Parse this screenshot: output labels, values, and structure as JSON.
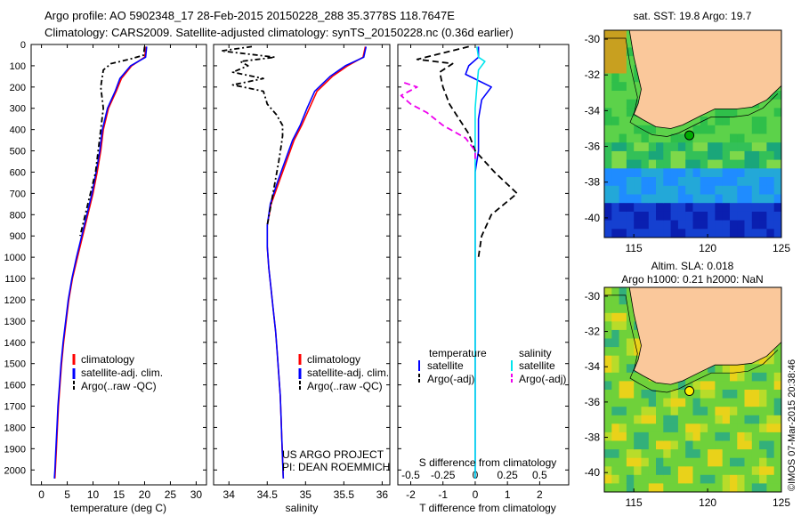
{
  "header": {
    "line1": "Argo profile: AO 5902348_17 28-Feb-2015 20150228_288 35.3778S 118.7647E",
    "line2": "Climatology: CARS2009. Satellite-adjusted climatology: synTS_20150228.nc (0.36d earlier)"
  },
  "colors": {
    "climatology": "#ff0000",
    "satellite": "#0000ff",
    "argo": "#000000",
    "sal_satellite": "#00e5ee",
    "sal_argo": "#ee00ee",
    "land": "#fac89b"
  },
  "chart_data": [
    {
      "type": "line",
      "id": "temperature",
      "xlabel": "temperature (deg C)",
      "ylabel": "",
      "xlim": [
        -2,
        32
      ],
      "ylim": [
        2070,
        0
      ],
      "xticks": [
        0,
        5,
        10,
        15,
        20,
        25,
        30
      ],
      "yticks": [
        0,
        100,
        200,
        300,
        400,
        500,
        600,
        700,
        800,
        900,
        1000,
        1100,
        1200,
        1300,
        1400,
        1500,
        1600,
        1700,
        1800,
        1900,
        2000
      ],
      "legend": [
        "climatology",
        "satellite-adj. clim.",
        "Argo(..raw -QC)"
      ],
      "series": [
        {
          "name": "climatology",
          "style": "solid",
          "color_key": "climatology",
          "points": [
            [
              20.3,
              10
            ],
            [
              20.0,
              60
            ],
            [
              17.5,
              100
            ],
            [
              15.5,
              160
            ],
            [
              14.5,
              220
            ],
            [
              13.0,
              300
            ],
            [
              12.0,
              400
            ],
            [
              11.5,
              500
            ],
            [
              10.8,
              600
            ],
            [
              10.0,
              700
            ],
            [
              9.0,
              800
            ],
            [
              8.0,
              900
            ],
            [
              7.0,
              1000
            ],
            [
              6.0,
              1100
            ],
            [
              5.3,
              1200
            ],
            [
              4.8,
              1300
            ],
            [
              4.3,
              1400
            ],
            [
              3.9,
              1500
            ],
            [
              3.6,
              1600
            ],
            [
              3.3,
              1700
            ],
            [
              3.1,
              1800
            ],
            [
              2.9,
              1900
            ],
            [
              2.7,
              2000
            ],
            [
              2.6,
              2040
            ]
          ]
        },
        {
          "name": "satellite-adj. clim.",
          "style": "solid",
          "color_key": "satellite",
          "points": [
            [
              20.4,
              10
            ],
            [
              20.2,
              60
            ],
            [
              17.3,
              100
            ],
            [
              15.2,
              160
            ],
            [
              14.3,
              220
            ],
            [
              12.8,
              300
            ],
            [
              11.8,
              400
            ],
            [
              11.3,
              500
            ],
            [
              10.6,
              600
            ],
            [
              9.8,
              700
            ],
            [
              8.8,
              800
            ],
            [
              7.8,
              900
            ],
            [
              6.8,
              1000
            ],
            [
              5.9,
              1100
            ],
            [
              5.2,
              1200
            ],
            [
              4.7,
              1300
            ],
            [
              4.2,
              1400
            ],
            [
              3.8,
              1500
            ],
            [
              3.5,
              1600
            ],
            [
              3.2,
              1700
            ],
            [
              3.0,
              1800
            ],
            [
              2.8,
              1900
            ],
            [
              2.6,
              2000
            ],
            [
              2.5,
              2040
            ]
          ]
        },
        {
          "name": "Argo(..raw -QC)",
          "style": "dashdot",
          "color_key": "argo",
          "points": [
            [
              20.0,
              10
            ],
            [
              19.8,
              50
            ],
            [
              17.0,
              70
            ],
            [
              13.5,
              90
            ],
            [
              12.0,
              120
            ],
            [
              11.5,
              200
            ],
            [
              12.0,
              300
            ],
            [
              11.5,
              400
            ],
            [
              11.0,
              500
            ],
            [
              10.5,
              600
            ],
            [
              9.5,
              700
            ],
            [
              8.5,
              800
            ],
            [
              7.5,
              900
            ]
          ]
        }
      ]
    },
    {
      "type": "line",
      "id": "salinity",
      "xlabel": "salinity",
      "ylabel": "",
      "xlim": [
        33.8,
        36.1
      ],
      "ylim": [
        2070,
        0
      ],
      "xticks": [
        34,
        34.5,
        35,
        35.5,
        36
      ],
      "legend": [
        "climatology",
        "satellite-adj. clim.",
        "Argo(..raw -QC)"
      ],
      "series": [
        {
          "name": "climatology",
          "style": "solid",
          "color_key": "climatology",
          "points": [
            [
              35.78,
              10
            ],
            [
              35.75,
              60
            ],
            [
              35.55,
              100
            ],
            [
              35.35,
              150
            ],
            [
              35.15,
              220
            ],
            [
              35.05,
              300
            ],
            [
              34.95,
              380
            ],
            [
              34.85,
              450
            ],
            [
              34.75,
              550
            ],
            [
              34.65,
              650
            ],
            [
              34.55,
              750
            ],
            [
              34.5,
              850
            ],
            [
              34.5,
              950
            ],
            [
              34.52,
              1050
            ],
            [
              34.55,
              1150
            ],
            [
              34.58,
              1250
            ],
            [
              34.61,
              1350
            ],
            [
              34.63,
              1450
            ],
            [
              34.65,
              1550
            ],
            [
              34.67,
              1650
            ],
            [
              34.68,
              1750
            ],
            [
              34.69,
              1850
            ],
            [
              34.7,
              1950
            ],
            [
              34.71,
              2040
            ]
          ]
        },
        {
          "name": "satellite-adj. clim.",
          "style": "solid",
          "color_key": "satellite",
          "points": [
            [
              35.79,
              10
            ],
            [
              35.76,
              60
            ],
            [
              35.52,
              100
            ],
            [
              35.32,
              150
            ],
            [
              35.12,
              220
            ],
            [
              35.02,
              300
            ],
            [
              34.93,
              380
            ],
            [
              34.83,
              450
            ],
            [
              34.73,
              550
            ],
            [
              34.63,
              650
            ],
            [
              34.54,
              750
            ],
            [
              34.5,
              850
            ],
            [
              34.5,
              950
            ],
            [
              34.52,
              1050
            ],
            [
              34.55,
              1150
            ],
            [
              34.58,
              1250
            ],
            [
              34.61,
              1350
            ],
            [
              34.63,
              1450
            ],
            [
              34.65,
              1550
            ],
            [
              34.67,
              1650
            ],
            [
              34.68,
              1750
            ],
            [
              34.69,
              1850
            ],
            [
              34.7,
              1950
            ],
            [
              34.71,
              2040
            ]
          ]
        },
        {
          "name": "Argo(..raw -QC)",
          "style": "dashdot",
          "color_key": "argo",
          "points": [
            [
              34.3,
              10
            ],
            [
              33.9,
              30
            ],
            [
              34.6,
              60
            ],
            [
              34.15,
              80
            ],
            [
              34.25,
              100
            ],
            [
              34.05,
              130
            ],
            [
              34.45,
              160
            ],
            [
              34.05,
              190
            ],
            [
              34.45,
              220
            ],
            [
              34.5,
              280
            ],
            [
              34.62,
              330
            ],
            [
              34.7,
              380
            ],
            [
              34.7,
              430
            ],
            [
              34.68,
              480
            ],
            [
              34.65,
              550
            ],
            [
              34.6,
              650
            ],
            [
              34.55,
              750
            ],
            [
              34.5,
              850
            ]
          ]
        }
      ]
    },
    {
      "type": "line",
      "id": "differences",
      "xlabel": "T difference from climatology",
      "xlabel_top": "S difference from climatology",
      "ylabel": "",
      "xlim": [
        -2.4,
        2.9
      ],
      "ylim": [
        2070,
        0
      ],
      "xticks_T": [
        -2,
        -1,
        0,
        1,
        2
      ],
      "xticks_S": [
        "-0.5",
        "-0.25",
        "0",
        "0.25",
        "0.5"
      ],
      "legend_temperature_title": "temperature",
      "legend_salinity_title": "salinity",
      "legend_temperature": [
        "satellite",
        "Argo(-adj)"
      ],
      "legend_salinity": [
        "satellite",
        "Argo(-adj)"
      ],
      "series": [
        {
          "name": "temperature satellite",
          "style": "solid",
          "color_key": "satellite",
          "points": [
            [
              0.1,
              10
            ],
            [
              0.1,
              60
            ],
            [
              -0.2,
              100
            ],
            [
              -0.3,
              140
            ],
            [
              0.5,
              200
            ],
            [
              0.2,
              260
            ],
            [
              0.1,
              350
            ],
            [
              0.1,
              500
            ],
            [
              0.0,
              600
            ],
            [
              0.0,
              700
            ],
            [
              0.0,
              800
            ],
            [
              0.0,
              900
            ],
            [
              0.0,
              1000
            ],
            [
              0.0,
              1500
            ],
            [
              0.0,
              2040
            ]
          ]
        },
        {
          "name": "salinity satellite",
          "style": "solid",
          "color_key": "sal_satellite",
          "points": [
            [
              0.05,
              10
            ],
            [
              0.1,
              60
            ],
            [
              0.3,
              80
            ],
            [
              0.1,
              120
            ],
            [
              0.05,
              200
            ],
            [
              0.0,
              300
            ],
            [
              0.0,
              500
            ],
            [
              0.0,
              1000
            ],
            [
              0.0,
              2040
            ]
          ]
        },
        {
          "name": "temperature Argo(-adj)",
          "style": "dashed",
          "color_key": "argo",
          "points": [
            [
              -0.2,
              10
            ],
            [
              -1.8,
              70
            ],
            [
              -0.7,
              90
            ],
            [
              -1.1,
              130
            ],
            [
              -1.0,
              200
            ],
            [
              -0.8,
              280
            ],
            [
              -0.5,
              350
            ],
            [
              -0.2,
              420
            ],
            [
              0.0,
              500
            ],
            [
              0.6,
              600
            ],
            [
              1.3,
              700
            ],
            [
              0.5,
              800
            ],
            [
              0.2,
              900
            ],
            [
              0.1,
              1000
            ]
          ]
        },
        {
          "name": "salinity Argo(-adj)",
          "style": "dashed",
          "color_key": "sal_argo",
          "points": [
            [
              -2.2,
              180
            ],
            [
              -1.8,
              200
            ],
            [
              -2.3,
              240
            ],
            [
              -2.0,
              280
            ],
            [
              -1.5,
              320
            ],
            [
              -1.0,
              380
            ],
            [
              -0.3,
              440
            ],
            [
              0.0,
              500
            ],
            [
              0.0,
              550
            ]
          ]
        }
      ]
    }
  ],
  "labels": {
    "credit1": "US ARGO PROJECT",
    "credit2": "PI: DEAN ROEMMICH",
    "sst_title": "sat. SST: 19.8 Argo: 19.7",
    "sla_title1": "Altim. SLA: 0.018",
    "sla_title2": "Argo h1000: 0.21 h2000: NaN",
    "side_stamp": "©IMOS 07-Mar-2015 20:38:46"
  },
  "maps": {
    "xlim": [
      113,
      125
    ],
    "ylim": [
      -41.1,
      -29.5
    ],
    "xticks": [
      115,
      120,
      125
    ],
    "yticks": [
      -30,
      -32,
      -34,
      -36,
      -38,
      -40
    ],
    "argo_position": {
      "lon": 118.7647,
      "lat": -35.3778
    },
    "sst_marker_color": "#00aa00",
    "sla_marker_color": "#ffee00"
  }
}
